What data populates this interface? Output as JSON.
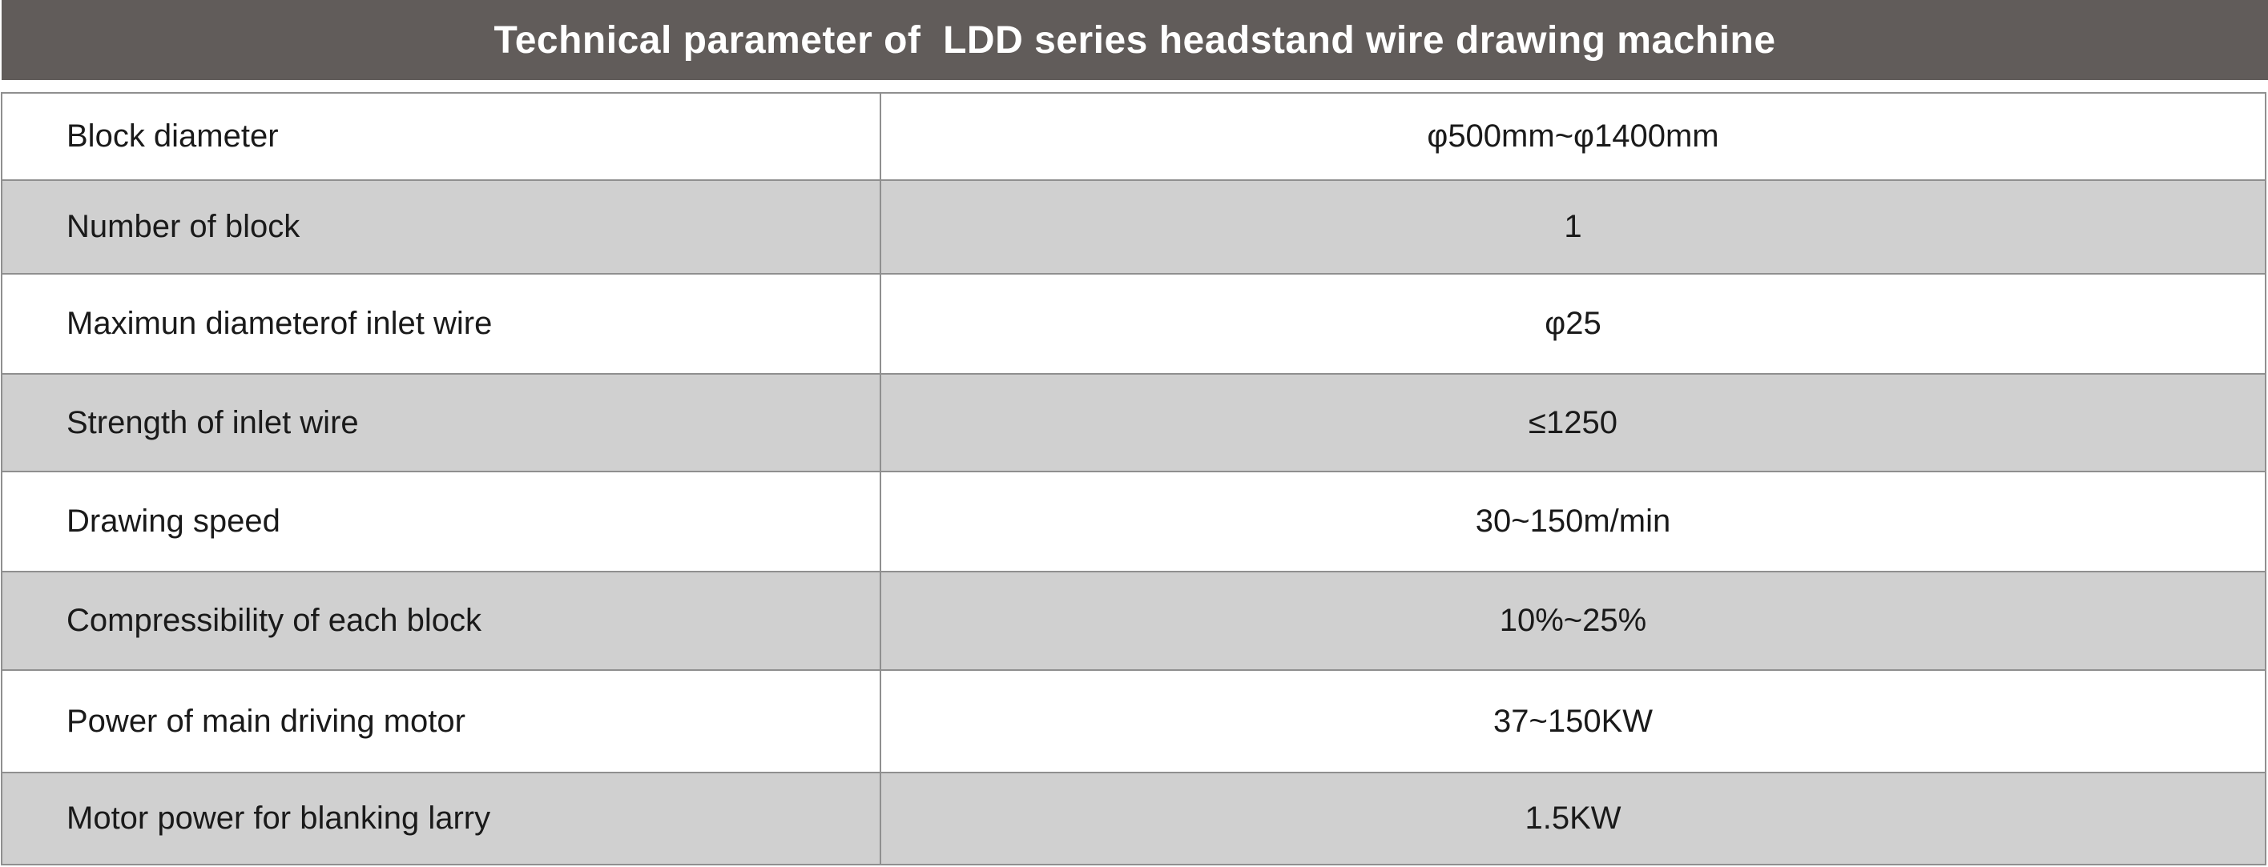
{
  "title": "Technical parameter of  LDD series headstand wire drawing machine",
  "colors": {
    "title_bar": "#615c5a",
    "title_text": "#ffffff",
    "row_shade": "#d0d0d0",
    "row_plain": "#ffffff",
    "grid_line": "#8f8f8f",
    "cell_text": "#1a1a1a"
  },
  "rows": [
    {
      "label": "Block diameter",
      "value": "φ500mm~φ1400mm"
    },
    {
      "label": "Number of block",
      "value": "1"
    },
    {
      "label": "Maximun diameterof inlet wire",
      "value": "φ25"
    },
    {
      "label": "Strength of inlet wire",
      "value": "≤1250"
    },
    {
      "label": "Drawing speed",
      "value": "30~150m/min"
    },
    {
      "label": "Compressibility of each block",
      "value": "10%~25%"
    },
    {
      "label": "Power of main driving motor",
      "value": "37~150KW"
    },
    {
      "label": "Motor power for blanking larry",
      "value": "1.5KW"
    }
  ]
}
